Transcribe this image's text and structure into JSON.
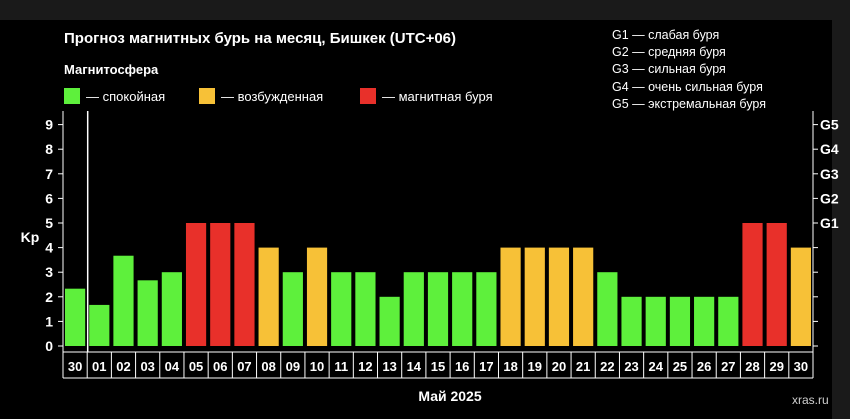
{
  "title": "Прогноз магнитных бурь на месяц, Бишкек (UTC+06)",
  "magnetosphere": {
    "title": "Магнитосфера",
    "items": [
      {
        "label": "— спокойная",
        "color": "#5ef03c"
      },
      {
        "label": "— возбужденная",
        "color": "#f7c137"
      },
      {
        "label": "— магнитная буря",
        "color": "#e8302a"
      }
    ]
  },
  "storm_legend": [
    "G1 — слабая буря",
    "G2 — средняя буря",
    "G3 — сильная буря",
    "G4 — очень сильная буря",
    "G5 — экстремальная буря"
  ],
  "watermark": "xras.ru",
  "chart_data": {
    "type": "bar",
    "xlabel": "Май 2025",
    "ylabel": "Kp",
    "ylim": [
      0,
      9
    ],
    "yticks": [
      "0",
      "1",
      "2",
      "3",
      "4",
      "5",
      "6",
      "7",
      "8",
      "9"
    ],
    "right_axis_labels": [
      {
        "kp": 5,
        "label": "G1"
      },
      {
        "kp": 6,
        "label": "G2"
      },
      {
        "kp": 7,
        "label": "G3"
      },
      {
        "kp": 8,
        "label": "G4"
      },
      {
        "kp": 9,
        "label": "G5"
      }
    ],
    "categories": [
      "30",
      "01",
      "02",
      "03",
      "04",
      "05",
      "06",
      "07",
      "08",
      "09",
      "10",
      "11",
      "12",
      "13",
      "14",
      "15",
      "16",
      "17",
      "18",
      "19",
      "20",
      "21",
      "22",
      "23",
      "24",
      "25",
      "26",
      "27",
      "28",
      "29",
      "30"
    ],
    "values": [
      2.33,
      1.67,
      3.67,
      2.67,
      3,
      5,
      5,
      5,
      4,
      3,
      4,
      3,
      3,
      2,
      3,
      3,
      3,
      3,
      4,
      4,
      4,
      4,
      3,
      2,
      2,
      2,
      2,
      2,
      5,
      5,
      4
    ],
    "levels": [
      "quiet",
      "quiet",
      "quiet",
      "quiet",
      "quiet",
      "storm",
      "storm",
      "storm",
      "active",
      "quiet",
      "active",
      "quiet",
      "quiet",
      "quiet",
      "quiet",
      "quiet",
      "quiet",
      "quiet",
      "active",
      "active",
      "active",
      "active",
      "quiet",
      "quiet",
      "quiet",
      "quiet",
      "quiet",
      "quiet",
      "storm",
      "storm",
      "active"
    ],
    "level_colors": {
      "quiet": "#5ef03c",
      "active": "#f7c137",
      "storm": "#e8302a"
    },
    "today_index": 1
  }
}
